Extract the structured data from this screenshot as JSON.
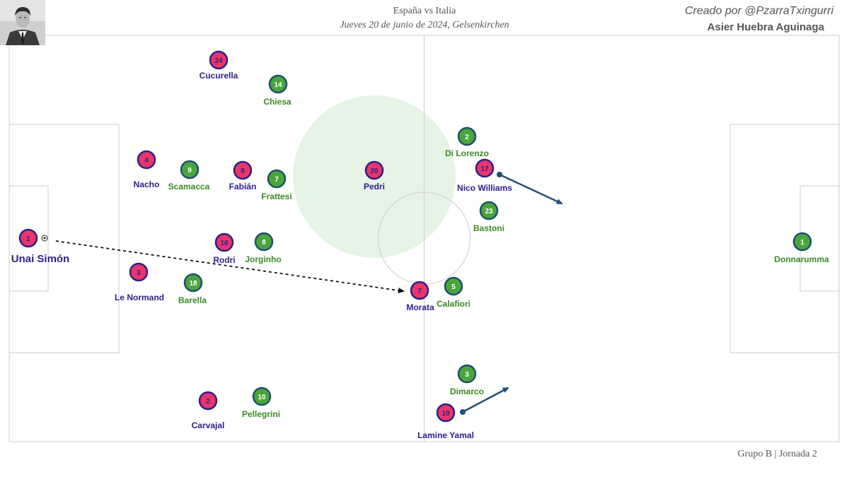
{
  "header": {
    "title": "España vs Italia",
    "subtitle": "Jueves 20 de junio de 2024, Gelsenkirchen",
    "credit": "Creado por @PzarraTxingurri",
    "author": "Asier Huebra Aguinaga"
  },
  "footer": {
    "text": "Grupo B | Jornada 2"
  },
  "colors": {
    "spain_fill": "#e8356a",
    "spain_ring": "#2b1f8c",
    "spain_label": "#2b1f8c",
    "italy_fill": "#4aa63c",
    "italy_ring": "#1f4f70",
    "italy_label": "#3a8a24",
    "arrow": "#1f4f7a",
    "pass": "#111111",
    "zone": "#e6f4e6",
    "lines": "#cccccc"
  },
  "players": {
    "spain": [
      {
        "number": "24",
        "name": "Cucurella"
      },
      {
        "number": "4",
        "name": "Nacho"
      },
      {
        "number": "8",
        "name": "Fabián"
      },
      {
        "number": "20",
        "name": "Pedri"
      },
      {
        "number": "17",
        "name": "Nico Williams"
      },
      {
        "number": "1",
        "name": "Unai Simón"
      },
      {
        "number": "16",
        "name": "Rodri"
      },
      {
        "number": "3",
        "name": "Le Normand"
      },
      {
        "number": "7",
        "name": "Morata"
      },
      {
        "number": "2",
        "name": "Carvajal"
      },
      {
        "number": "19",
        "name": "Lamine Yamal"
      }
    ],
    "italy": [
      {
        "number": "14",
        "name": "Chiesa"
      },
      {
        "number": "9",
        "name": "Scamacca"
      },
      {
        "number": "7",
        "name": "Frattesi"
      },
      {
        "number": "2",
        "name": "Di Lorenzo"
      },
      {
        "number": "23",
        "name": "Bastoni"
      },
      {
        "number": "8",
        "name": "Jorginho"
      },
      {
        "number": "18",
        "name": "Barella"
      },
      {
        "number": "5",
        "name": "Calafiori"
      },
      {
        "number": "3",
        "name": "Dimarco"
      },
      {
        "number": "10",
        "name": "Pellegrini"
      },
      {
        "number": "1",
        "name": "Donnarumma"
      }
    ]
  }
}
